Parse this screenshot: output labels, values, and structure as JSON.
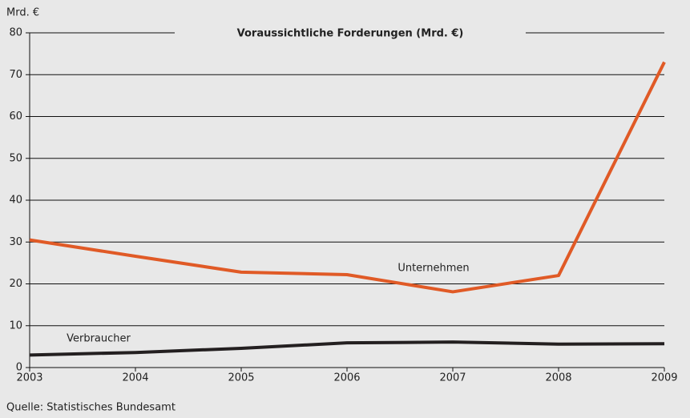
{
  "chart_data": {
    "type": "line",
    "title": "Voraussichtliche Forderungen (Mrd. €)",
    "y_axis_label": "Mrd. €",
    "source": "Quelle: Statistisches Bundesamt",
    "x": [
      2003,
      2004,
      2005,
      2006,
      2007,
      2008,
      2009
    ],
    "xlim": [
      2003,
      2009
    ],
    "xticks": [
      2003,
      2004,
      2005,
      2006,
      2007,
      2008,
      2009
    ],
    "ylim": [
      0,
      80
    ],
    "yticks": [
      0,
      10,
      20,
      30,
      40,
      50,
      60,
      70,
      80
    ],
    "grid": true,
    "series": [
      {
        "name": "Unternehmen",
        "color": "#e05a26",
        "values": [
          30.5,
          26.6,
          22.8,
          22.2,
          18.1,
          22.0,
          73.0
        ]
      },
      {
        "name": "Verbraucher",
        "color": "#231f20",
        "values": [
          3.0,
          3.6,
          4.6,
          5.9,
          6.1,
          5.6,
          5.7
        ]
      }
    ]
  }
}
